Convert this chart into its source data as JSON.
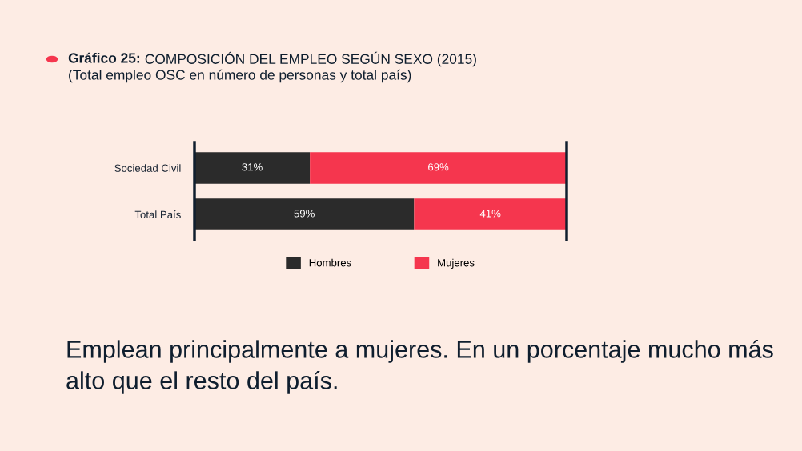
{
  "chart_data": {
    "type": "bar",
    "orientation": "horizontal",
    "stacked": true,
    "title": "Gráfico 25: COMPOSICIÓN DEL EMPLEO SEGÚN SEXO (2015)",
    "subtitle": "(Total empleo OSC en número de personas y total país)",
    "categories": [
      "Sociedad Civil",
      "Total País"
    ],
    "series": [
      {
        "name": "Hombres",
        "color": "#2b2b2b",
        "values": [
          31,
          59
        ],
        "value_labels": [
          "31%",
          "59%"
        ]
      },
      {
        "name": "Mujeres",
        "color": "#f5364e",
        "values": [
          69,
          41
        ],
        "value_labels": [
          "69%",
          "41%"
        ]
      }
    ],
    "legend": "bottom",
    "grid": false,
    "annotations": [
      "Emplean principalmente a mujeres. En un porcentaje mucho más alto que el resto del país."
    ]
  }
}
